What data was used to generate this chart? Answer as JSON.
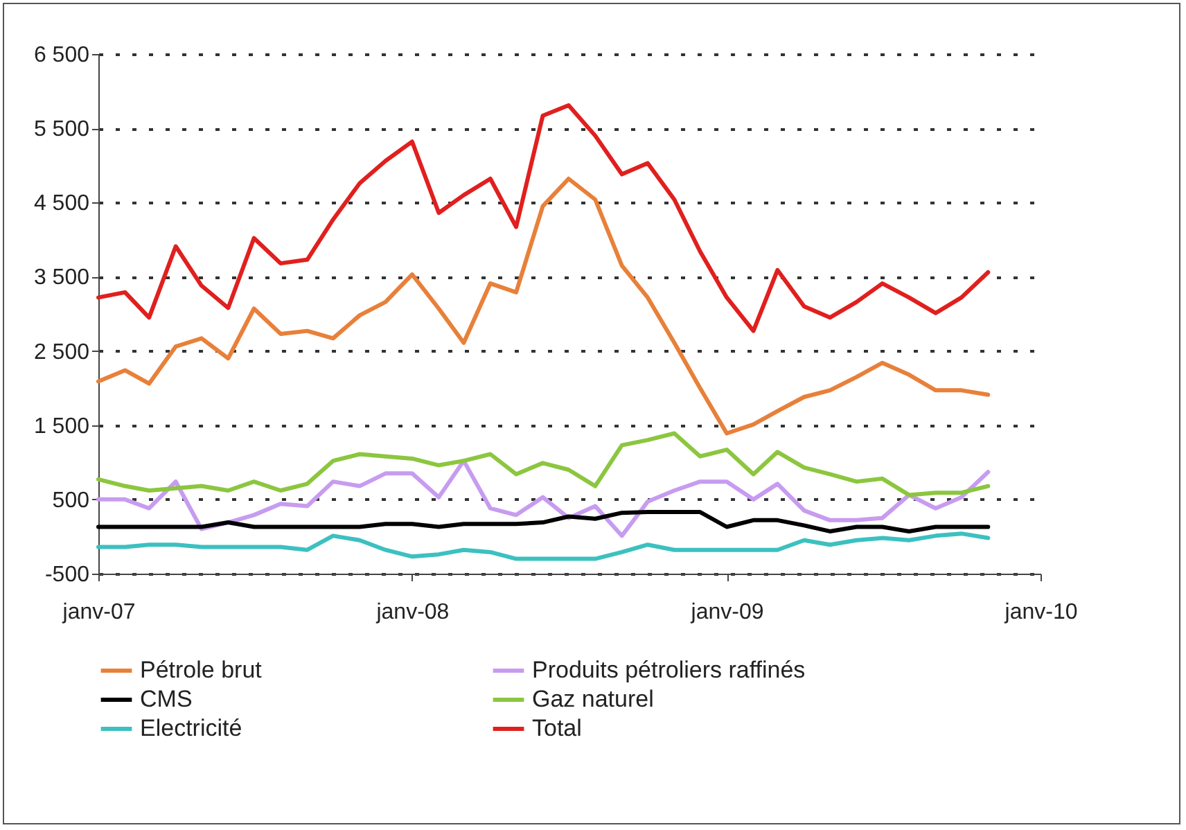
{
  "chart_data": {
    "type": "line",
    "x": [
      "2007-01",
      "2007-02",
      "2007-03",
      "2007-04",
      "2007-05",
      "2007-06",
      "2007-07",
      "2007-08",
      "2007-09",
      "2007-10",
      "2007-11",
      "2007-12",
      "2008-01",
      "2008-02",
      "2008-03",
      "2008-04",
      "2008-05",
      "2008-06",
      "2008-07",
      "2008-08",
      "2008-09",
      "2008-10",
      "2008-11",
      "2008-12",
      "2009-01",
      "2009-02",
      "2009-03",
      "2009-04",
      "2009-05",
      "2009-06",
      "2009-07",
      "2009-08",
      "2009-09",
      "2009-10",
      "2009-11"
    ],
    "series": [
      {
        "name": "Pétrole brut",
        "color": "#e8803a",
        "values": [
          2090,
          2240,
          2060,
          2560,
          2670,
          2400,
          3070,
          2730,
          2770,
          2670,
          2980,
          3160,
          3530,
          3070,
          2610,
          3410,
          3290,
          4450,
          4820,
          4540,
          3650,
          3220,
          2610,
          2000,
          1390,
          1510,
          1690,
          1880,
          1970,
          2150,
          2340,
          2180,
          1970,
          1970,
          1910
        ]
      },
      {
        "name": "Produits pétroliers raffinés",
        "color": "#c79cf0",
        "values": [
          500,
          500,
          380,
          740,
          100,
          190,
          290,
          440,
          410,
          740,
          680,
          850,
          850,
          530,
          1020,
          380,
          290,
          530,
          250,
          410,
          10,
          470,
          620,
          740,
          740,
          500,
          710,
          350,
          220,
          220,
          250,
          560,
          380,
          530,
          870
        ]
      },
      {
        "name": "CMS",
        "color": "#000000",
        "values": [
          130,
          130,
          130,
          130,
          130,
          190,
          130,
          130,
          130,
          130,
          130,
          170,
          170,
          130,
          170,
          170,
          170,
          190,
          270,
          240,
          320,
          330,
          330,
          330,
          130,
          220,
          220,
          150,
          70,
          130,
          130,
          70,
          130,
          130,
          130
        ]
      },
      {
        "name": "Gaz naturel",
        "color": "#8cc63f",
        "values": [
          770,
          680,
          620,
          650,
          680,
          620,
          740,
          620,
          710,
          1020,
          1110,
          1080,
          1050,
          960,
          1020,
          1110,
          840,
          990,
          900,
          680,
          1230,
          1300,
          1390,
          1080,
          1170,
          840,
          1140,
          930,
          840,
          740,
          780,
          560,
          590,
          590,
          680
        ]
      },
      {
        "name": "Electricité",
        "color": "#3cc0c0",
        "values": [
          -140,
          -140,
          -110,
          -110,
          -140,
          -140,
          -140,
          -140,
          -180,
          10,
          -50,
          -180,
          -270,
          -240,
          -180,
          -210,
          -300,
          -300,
          -300,
          -300,
          -210,
          -110,
          -180,
          -180,
          -180,
          -180,
          -180,
          -50,
          -110,
          -50,
          -20,
          -50,
          10,
          40,
          -20
        ]
      },
      {
        "name": "Total",
        "color": "#e0201e",
        "values": [
          3220,
          3290,
          2950,
          3910,
          3380,
          3080,
          4020,
          3680,
          3730,
          4270,
          4760,
          5060,
          5320,
          4360,
          4600,
          4820,
          4170,
          5670,
          5810,
          5400,
          4880,
          5030,
          4540,
          3840,
          3220,
          2770,
          3590,
          3100,
          2950,
          3160,
          3410,
          3220,
          3010,
          3220,
          3560
        ]
      }
    ],
    "xlim": [
      "2007-01",
      "2010-01"
    ],
    "xticks": [
      {
        "value": "2007-01",
        "label": "janv-07"
      },
      {
        "value": "2008-01",
        "label": "janv-08"
      },
      {
        "value": "2009-01",
        "label": "janv-09"
      },
      {
        "value": "2010-01",
        "label": "janv-10"
      }
    ],
    "ylim": [
      -500,
      6500
    ],
    "yticks": [
      -500,
      500,
      {
        "value": 1500,
        "label": "1 500"
      },
      {
        "value": 2500,
        "label": "2 500"
      },
      {
        "value": 3500,
        "label": "3 500"
      },
      {
        "value": 4500,
        "label": "4 500"
      },
      {
        "value": 5500,
        "label": "5 500"
      },
      {
        "value": 6500,
        "label": "6 500"
      }
    ],
    "grid": "y",
    "legend": "bottom",
    "line_style": "solid",
    "marker": "none"
  }
}
